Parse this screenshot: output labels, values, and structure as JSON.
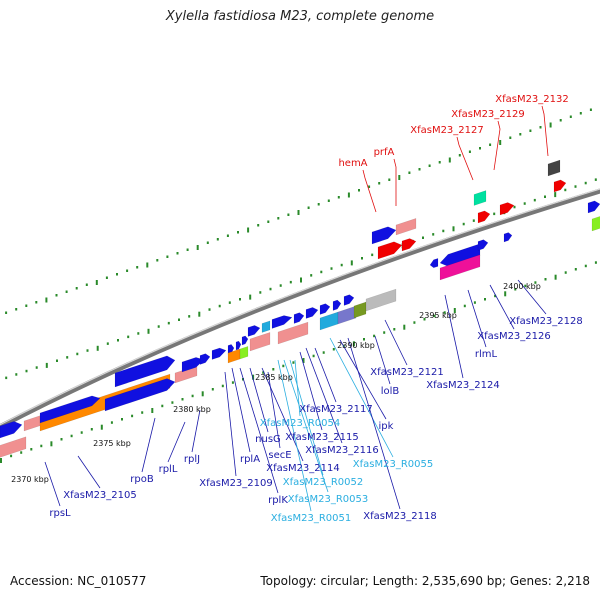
{
  "header": {
    "title": "Xylella fastidiosa M23, complete genome"
  },
  "footer": {
    "accession": "Accession: NC_010577",
    "topology": "Topology: circular; Length: 2,535,690 bp; Genes: 2,218"
  },
  "colors": {
    "backbone": "#808080",
    "dots": "#2a8a2a",
    "cds_label": "#1a1aa8",
    "rna_label": "#2aaee0",
    "pseudo_label": "#e01010",
    "cds": "#1010e0",
    "pseudo": "#f00000",
    "orange": "#ff8800",
    "salmon": "#f09090",
    "magenta": "#ee1199",
    "grey": "#bbbbbb",
    "cyan": "#22aadd",
    "teal": "#00e0a0",
    "lime": "#88ee22",
    "purple": "#7777cc",
    "olive": "#779922",
    "dark": "#444444"
  },
  "scale": {
    "ticks": [
      {
        "label": "2370 kbp"
      },
      {
        "label": "2375 kbp"
      },
      {
        "label": "2380 kbp"
      },
      {
        "label": "2385 kbp"
      },
      {
        "label": "2390 kbp"
      },
      {
        "label": "2395 kbp"
      },
      {
        "label": "2400 kbp"
      }
    ]
  },
  "genes": {
    "top": [
      {
        "label": "hemA",
        "kind": "pseudo"
      },
      {
        "label": "prfA",
        "kind": "pseudo"
      },
      {
        "label": "XfasM23_2127",
        "kind": "pseudo"
      },
      {
        "label": "XfasM23_2129",
        "kind": "pseudo"
      },
      {
        "label": "XfasM23_2132",
        "kind": "pseudo"
      }
    ],
    "bottom": [
      {
        "label": "rpsL",
        "kind": "cds"
      },
      {
        "label": "XfasM23_2105",
        "kind": "cds"
      },
      {
        "label": "rpoB",
        "kind": "cds"
      },
      {
        "label": "rplL",
        "kind": "cds"
      },
      {
        "label": "rplJ",
        "kind": "cds"
      },
      {
        "label": "XfasM23_2109",
        "kind": "cds"
      },
      {
        "label": "rplA",
        "kind": "cds"
      },
      {
        "label": "rplK",
        "kind": "cds"
      },
      {
        "label": "nusG",
        "kind": "cds"
      },
      {
        "label": "XfasM23_2114",
        "kind": "cds"
      },
      {
        "label": "secE",
        "kind": "cds"
      },
      {
        "label": "XfasM23_R0051",
        "kind": "rna"
      },
      {
        "label": "XfasM23_R0053",
        "kind": "rna"
      },
      {
        "label": "XfasM23_R0052",
        "kind": "rna"
      },
      {
        "label": "XfasM23_R0054",
        "kind": "rna"
      },
      {
        "label": "XfasM23_2115",
        "kind": "cds"
      },
      {
        "label": "XfasM23_2116",
        "kind": "cds"
      },
      {
        "label": "XfasM23_2117",
        "kind": "cds"
      },
      {
        "label": "XfasM23_R0055",
        "kind": "rna"
      },
      {
        "label": "ipk",
        "kind": "cds"
      },
      {
        "label": "XfasM23_2118",
        "kind": "cds"
      },
      {
        "label": "lolB",
        "kind": "cds"
      },
      {
        "label": "XfasM23_2121",
        "kind": "cds"
      },
      {
        "label": "XfasM23_2124",
        "kind": "cds"
      },
      {
        "label": "rlmL",
        "kind": "cds"
      },
      {
        "label": "XfasM23_2126",
        "kind": "cds"
      },
      {
        "label": "XfasM23_2128",
        "kind": "cds"
      }
    ]
  }
}
